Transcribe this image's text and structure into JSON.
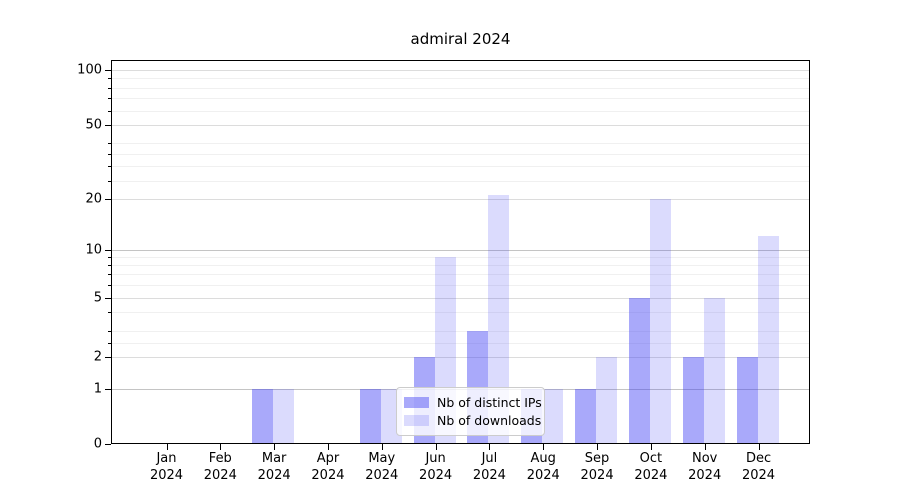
{
  "title": "admiral 2024",
  "year_label": "2024",
  "chart_data": {
    "type": "bar",
    "title": "admiral 2024",
    "categories": [
      "Jan",
      "Feb",
      "Mar",
      "Apr",
      "May",
      "Jun",
      "Jul",
      "Aug",
      "Sep",
      "Oct",
      "Nov",
      "Dec"
    ],
    "category_year": "2024",
    "series": [
      {
        "name": "Nb of distinct IPs",
        "color": "rgba(64,64,245,0.45)",
        "values": [
          0,
          0,
          1,
          0,
          1,
          2,
          3,
          1,
          1,
          5,
          2,
          2
        ]
      },
      {
        "name": "Nb of downloads",
        "color": "rgba(64,64,245,0.19)",
        "values": [
          0,
          0,
          1,
          0,
          1,
          9,
          21,
          1,
          2,
          20,
          5,
          12
        ]
      }
    ],
    "ylabel": "",
    "xlabel": "",
    "yticks": [
      0,
      1,
      2,
      5,
      10,
      20,
      50,
      100
    ],
    "minor_yticks": [
      2.5,
      3,
      4,
      6,
      7,
      8,
      9,
      25,
      30,
      35,
      40,
      60,
      70,
      80,
      90
    ],
    "strong_gridline_values": [
      1,
      10
    ],
    "ylim": [
      0,
      110
    ],
    "yscale": "log-like (0 linear below 1)",
    "grid": "horizontal",
    "legend_position": "inside lower-center"
  },
  "colors": {
    "bar_ips": "rgba(64,64,245,0.45)",
    "bar_downloads": "rgba(64,64,245,0.19)",
    "grid_minor": "#f0f0f0",
    "grid_major": "#dcdcdc",
    "grid_strong": "#c4c4c4",
    "axis": "#000000",
    "legend_border": "#cccccc"
  }
}
